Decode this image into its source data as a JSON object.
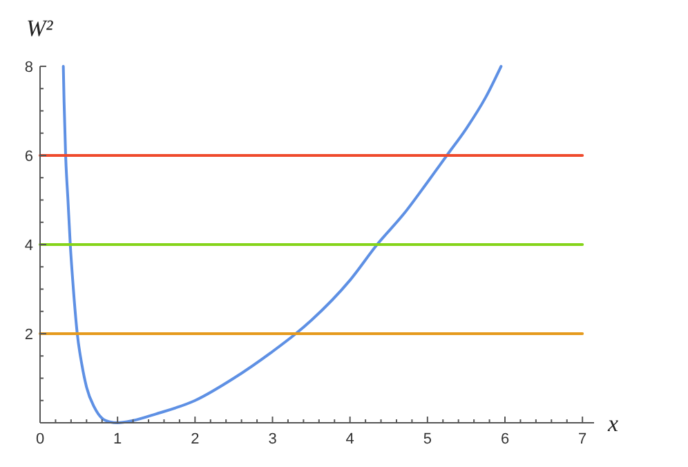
{
  "chart_data": {
    "type": "line",
    "xlabel": "x",
    "ylabel": "W²",
    "xlim": [
      0,
      7.15
    ],
    "ylim": [
      0,
      8
    ],
    "xticks": [
      0,
      {
        "value": 0.2,
        "label": null
      },
      {
        "value": 0.4,
        "label": null
      },
      {
        "value": 0.6,
        "label": null
      },
      {
        "value": 0.8,
        "label": null
      },
      1,
      {
        "value": 1.2,
        "label": null
      },
      {
        "value": 1.4,
        "label": null
      },
      {
        "value": 1.6,
        "label": null
      },
      {
        "value": 1.8,
        "label": null
      },
      2,
      {
        "value": 2.2,
        "label": null
      },
      {
        "value": 2.4,
        "label": null
      },
      {
        "value": 2.6,
        "label": null
      },
      {
        "value": 2.8,
        "label": null
      },
      3,
      {
        "value": 3.2,
        "label": null
      },
      {
        "value": 3.4,
        "label": null
      },
      {
        "value": 3.6,
        "label": null
      },
      {
        "value": 3.8,
        "label": null
      },
      4,
      {
        "value": 4.2,
        "label": null
      },
      {
        "value": 4.4,
        "label": null
      },
      {
        "value": 4.6,
        "label": null
      },
      {
        "value": 4.8,
        "label": null
      },
      5,
      {
        "value": 5.2,
        "label": null
      },
      {
        "value": 5.4,
        "label": null
      },
      {
        "value": 5.6,
        "label": null
      },
      {
        "value": 5.8,
        "label": null
      },
      6,
      {
        "value": 6.2,
        "label": null
      },
      {
        "value": 6.4,
        "label": null
      },
      {
        "value": 6.6,
        "label": null
      },
      {
        "value": 6.8,
        "label": null
      },
      7
    ],
    "yticks": [
      {
        "value": 0.5,
        "label": null
      },
      {
        "value": 1,
        "label": null
      },
      {
        "value": 1.5,
        "label": null
      },
      2,
      {
        "value": 2.5,
        "label": null
      },
      {
        "value": 3,
        "label": null
      },
      {
        "value": 3.5,
        "label": null
      },
      4,
      {
        "value": 4.5,
        "label": null
      },
      {
        "value": 5,
        "label": null
      },
      {
        "value": 5.5,
        "label": null
      },
      6,
      {
        "value": 6.5,
        "label": null
      },
      {
        "value": 7,
        "label": null
      },
      {
        "value": 7.5,
        "label": null
      },
      8
    ],
    "grid": false,
    "marker": "none",
    "line_style": "solid",
    "series": [
      {
        "color": "#5e90e4",
        "x": [
          0.3,
          0.31,
          0.33,
          0.36,
          0.39,
          0.43,
          0.48,
          0.54,
          0.6,
          0.7,
          0.8,
          0.9,
          1.0,
          1.2,
          1.5,
          2,
          2.5,
          3,
          3.3,
          3.5,
          4,
          4.35,
          4.7,
          5,
          5.25,
          5.5,
          5.75,
          5.95
        ],
        "values": [
          8,
          7.2,
          6,
          5,
          4,
          3,
          2,
          1.3,
          0.8,
          0.35,
          0.1,
          0.02,
          0,
          0.05,
          0.2,
          0.5,
          1.0,
          1.6,
          2,
          2.3,
          3.2,
          4,
          4.7,
          5.4,
          6,
          6.6,
          7.3,
          8
        ]
      },
      {
        "color": "#e59a1d",
        "x": [
          0,
          7
        ],
        "values": [
          2,
          2
        ]
      },
      {
        "color": "#85d41a",
        "x": [
          0,
          7
        ],
        "values": [
          4,
          4
        ]
      },
      {
        "color": "#ef4a2c",
        "x": [
          0,
          7
        ],
        "values": [
          6,
          6
        ]
      }
    ]
  }
}
